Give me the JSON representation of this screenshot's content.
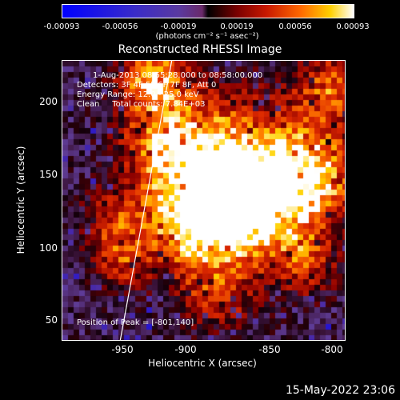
{
  "colorbar": {
    "ticks": [
      "-0.00093",
      "-0.00056",
      "-0.00019",
      "0.00019",
      "0.00056",
      "0.00093"
    ],
    "units": "(photons cm⁻² s⁻¹ asec⁻²)"
  },
  "title": "Reconstructed RHESSI Image",
  "info": {
    "time_range": "1-Aug-2013 08:55:28.000 to 08:58:00.000",
    "detectors": "Detectors: 3F 4F 5F 6F 7F 8F, Att 0",
    "energy": "Energy Range: 12.0 - 25.0 keV",
    "clean": "Clean     Total counts: 7.84E+03",
    "peak": "Position of Peak = [-801,140]"
  },
  "axes": {
    "xlabel": "Heliocentric X (arcsec)",
    "ylabel": "Heliocentric Y (arcsec)",
    "xticks": [
      "-950",
      "-900",
      "-850",
      "-800"
    ],
    "yticks": [
      "200",
      "150",
      "100",
      "50"
    ]
  },
  "timestamp": "15-May-2022 23:06"
}
